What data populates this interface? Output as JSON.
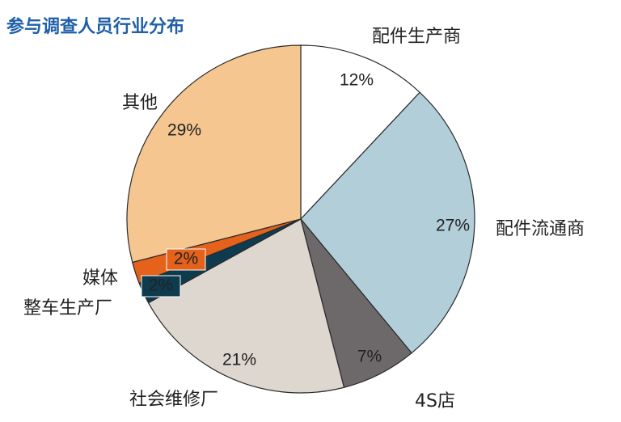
{
  "chart_data": {
    "type": "pie",
    "title": "参与调查人员行业分布",
    "categories": [
      "配件生产商",
      "配件流通商",
      "4S店",
      "社会维修厂",
      "整车生产厂",
      "媒体",
      "其他"
    ],
    "values": [
      12,
      27,
      7,
      21,
      2,
      2,
      29
    ],
    "value_labels": [
      "12%",
      "27%",
      "7%",
      "21%",
      "2%",
      "2%",
      "29%"
    ],
    "colors": [
      "#ffffff",
      "#b2ced9",
      "#6d696b",
      "#ddd7cf",
      "#0e3b4e",
      "#e4621c",
      "#f6c690"
    ]
  }
}
